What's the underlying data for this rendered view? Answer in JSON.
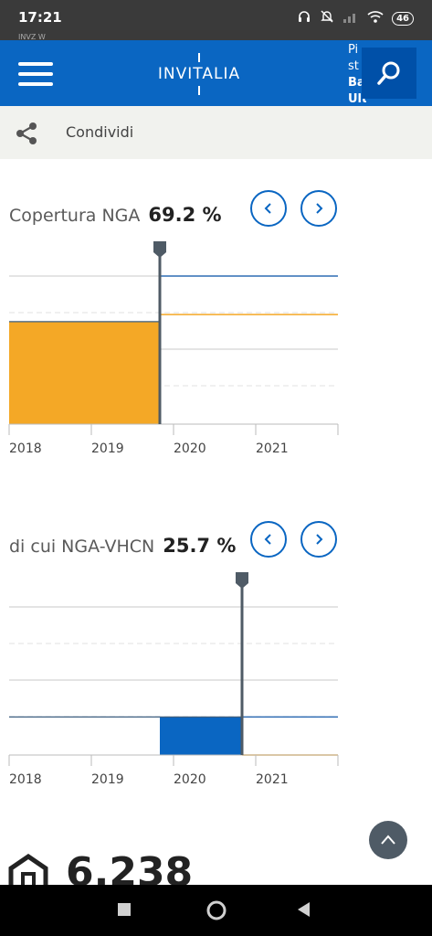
{
  "status_bar": {
    "time": "17:21",
    "sub_text": "INVZ W",
    "battery": "46"
  },
  "app_bar": {
    "logo_text": "INVITALIA",
    "clipped_text": [
      "Pi",
      "st",
      "Ba",
      "Ultra"
    ]
  },
  "share": {
    "label": "Condividi"
  },
  "chart_data": [
    {
      "type": "step-area",
      "label": "Copertura NGA",
      "value_text": "69.2 %",
      "x_ticks": [
        "2018",
        "2019",
        "2020",
        "2021"
      ],
      "highlighted_range": [
        "2018",
        "2019-11"
      ],
      "highlight_value_pct": 69.2,
      "marker": "2019-11",
      "series": [
        {
          "color": "#2f6db3",
          "level_pct": 100
        },
        {
          "color": "#f4a826",
          "level_pct": 74
        }
      ],
      "fill_color": "#f4a826"
    },
    {
      "type": "step-area",
      "label": "di cui NGA-VHCN",
      "value_text": "25.7 %",
      "x_ticks": [
        "2018",
        "2019",
        "2020",
        "2021"
      ],
      "highlighted_range": [
        "2019-11",
        "2020-11"
      ],
      "highlight_value_pct": 25.7,
      "marker": "2020-11",
      "series": [
        {
          "color": "#2f6db3",
          "level_pct": 25.7
        },
        {
          "color": "#f4a826",
          "level_pct": 0
        }
      ],
      "fill_color": "#0a66c2"
    }
  ],
  "bottom": {
    "number": "6.238"
  },
  "colors": {
    "brand": "#0a66c2",
    "accent": "#f4a826"
  },
  "icons": [
    "menu-icon",
    "search-icon",
    "share-icon",
    "chevron-left-icon",
    "chevron-right-icon",
    "chevron-up-icon",
    "home-icon"
  ]
}
